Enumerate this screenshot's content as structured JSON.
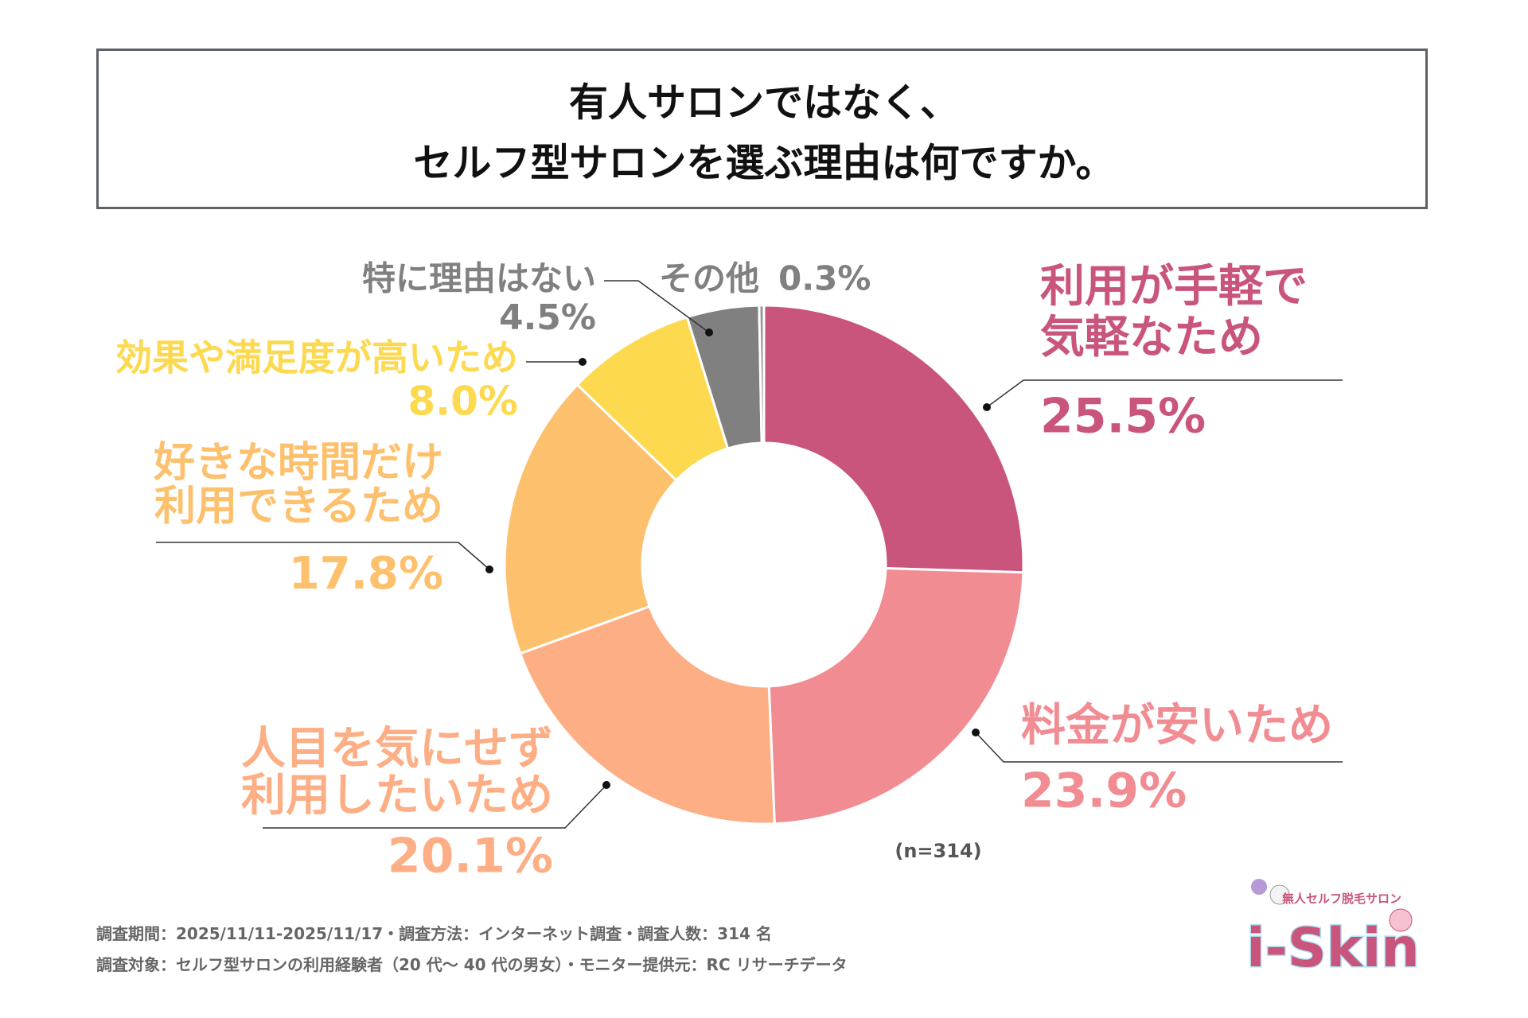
{
  "title": {
    "line1": "有人サロンではなく、",
    "line2": "セルフ型サロンを選ぶ理由は何ですか。"
  },
  "chart_data": {
    "type": "pie",
    "donut": true,
    "start": "top, clockwise",
    "slices": [
      {
        "label": "利用が手軽で気軽なため",
        "label_lines": [
          "利用が手軽で",
          "気軽なため"
        ],
        "value": 25.5,
        "value_label": "25.5%",
        "color": "#c9547c"
      },
      {
        "label": "料金が安いため",
        "label_lines": [
          "料金が安いため"
        ],
        "value": 23.9,
        "value_label": "23.9%",
        "color": "#f28c93"
      },
      {
        "label": "人目を気にせず利用したいため",
        "label_lines": [
          "人目を気にせず",
          "利用したいため"
        ],
        "value": 20.1,
        "value_label": "20.1%",
        "color": "#fdae84"
      },
      {
        "label": "好きな時間だけ利用できるため",
        "label_lines": [
          "好きな時間だけ",
          "利用できるため"
        ],
        "value": 17.8,
        "value_label": "17.8%",
        "color": "#fdc16e"
      },
      {
        "label": "効果や満足度が高いため",
        "label_lines": [
          "効果や満足度が高いため"
        ],
        "value": 8.0,
        "value_label": "8.0%",
        "color": "#fdd94f"
      },
      {
        "label": "特に理由はない",
        "label_lines": [
          "特に理由はない"
        ],
        "value": 4.5,
        "value_label": "4.5%",
        "color": "#808080"
      },
      {
        "label": "その他",
        "label_lines": [
          "その他"
        ],
        "value": 0.3,
        "value_label": "0.3%",
        "color": "#9a9a9a"
      }
    ],
    "sample_size": "(n=314)"
  },
  "footer": {
    "line1": "調査期間：2025/11/11-2025/11/17・調査方法：インターネット調査・調査人数：314 名",
    "line2": "調査対象：セルフ型サロンの利用経験者（20 代〜 40 代の男女）・モニター提供元：RC リサーチデータ"
  },
  "logo": {
    "tagline": "無人セルフ脱毛サロン",
    "brand": "i-Skin",
    "color": "#c9547c"
  }
}
